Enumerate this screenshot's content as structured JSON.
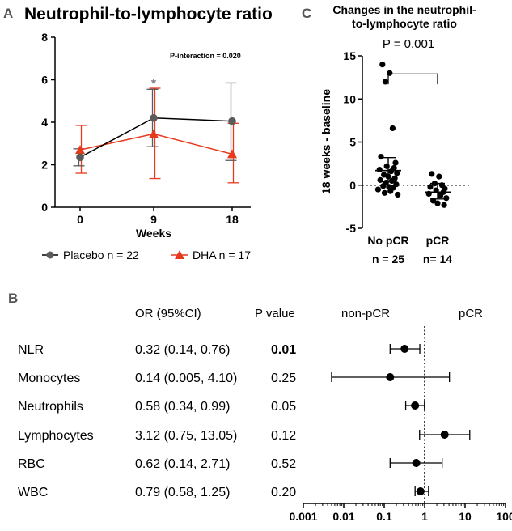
{
  "chart_data": [
    {
      "panel": "A",
      "type": "line",
      "title": "Neutrophil-to-lymphocyte ratio",
      "xlabel": "Weeks",
      "ylabel": "",
      "x": [
        0,
        9,
        18
      ],
      "x_ticks": [
        "0",
        "9",
        "18"
      ],
      "y_ticks": [
        "0",
        "2",
        "4",
        "6",
        "8"
      ],
      "ylim": [
        0,
        8
      ],
      "annotation": "P-interaction =  0.020",
      "sig_marker": "*",
      "series": [
        {
          "name": "Placebo n = 22",
          "color": "#5b5b5b",
          "line_color": "#000000",
          "marker": "circle",
          "values": [
            2.35,
            4.2,
            4.05
          ],
          "err_low": [
            1.95,
            2.85,
            2.2
          ],
          "err_high": [
            2.75,
            5.55,
            5.85
          ]
        },
        {
          "name": "DHA n = 17",
          "color": "#e8391d",
          "line_color": "#e8391d",
          "marker": "triangle",
          "values": [
            2.7,
            3.45,
            2.5
          ],
          "err_low": [
            1.6,
            1.35,
            1.15
          ],
          "err_high": [
            3.85,
            5.6,
            3.95
          ]
        }
      ]
    },
    {
      "panel": "C",
      "type": "scatter",
      "title": "Changes in the neutrophil-to-lymphocyte ratio",
      "title_lines": [
        "Changes in the neutrophil-",
        "to-lymphocyte ratio"
      ],
      "ylabel": "18 weeks - baseline",
      "ylim": [
        -5,
        15
      ],
      "y_ticks": [
        "-5",
        "0",
        "5",
        "10",
        "15"
      ],
      "p_value_label": "P = 0.001",
      "groups": [
        {
          "label": "No pCR",
          "n_label": "n = 25",
          "mean": 1.7,
          "sem_low": 0.4,
          "sem_high": 3.2,
          "values": [
            14.0,
            13.0,
            12.0,
            6.6,
            3.3,
            2.6,
            2.2,
            2.0,
            1.8,
            1.6,
            1.4,
            1.2,
            1.0,
            0.8,
            0.6,
            0.5,
            0.3,
            0.1,
            -0.1,
            -0.3,
            -0.5,
            -0.7,
            -0.9,
            -1.1,
            -0.2
          ]
        },
        {
          "label": "pCR",
          "n_label": "n= 14",
          "mean": -0.8,
          "sem_low": -1.6,
          "sem_high": 0.2,
          "values": [
            1.3,
            1.0,
            0.2,
            0.0,
            -0.2,
            -0.4,
            -0.6,
            -0.8,
            -1.0,
            -1.2,
            -1.5,
            -1.8,
            -2.1,
            -2.3
          ]
        }
      ]
    },
    {
      "panel": "B",
      "type": "forest",
      "headers": {
        "or": "OR (95%CI)",
        "p": "P  value",
        "left_label": "non-pCR",
        "right_label": "pCR"
      },
      "x_scale": "log",
      "x_ticks": [
        "0.001",
        "0.01",
        "0.1",
        "1",
        "10",
        "100"
      ],
      "xlim": [
        0.001,
        100
      ],
      "reference_line": 1,
      "rows": [
        {
          "label": "NLR",
          "or_text": "0.32 (0.14, 0.76)",
          "p": "0.01",
          "p_bold": true,
          "or": 0.32,
          "low": 0.14,
          "high": 0.76
        },
        {
          "label": "Monocytes",
          "or_text": "0.14 (0.005, 4.10)",
          "p": "0.25",
          "p_bold": false,
          "or": 0.14,
          "low": 0.005,
          "high": 4.1
        },
        {
          "label": "Neutrophils",
          "or_text": "0.58 (0.34, 0.99)",
          "p": "0.05",
          "p_bold": false,
          "or": 0.58,
          "low": 0.34,
          "high": 0.99
        },
        {
          "label": "Lymphocytes",
          "or_text": "3.12 (0.75, 13.05)",
          "p": "0.12",
          "p_bold": false,
          "or": 3.12,
          "low": 0.75,
          "high": 13.05
        },
        {
          "label": "RBC",
          "or_text": "0.62 (0.14, 2.71)",
          "p": "0.52",
          "p_bold": false,
          "or": 0.62,
          "low": 0.14,
          "high": 2.71
        },
        {
          "label": "WBC",
          "or_text": "0.79 (0.58, 1.25)",
          "p": "0.20",
          "p_bold": false,
          "or": 0.79,
          "low": 0.58,
          "high": 1.25
        }
      ]
    }
  ],
  "panel_labels": {
    "a": "A",
    "b": "B",
    "c": "C"
  }
}
